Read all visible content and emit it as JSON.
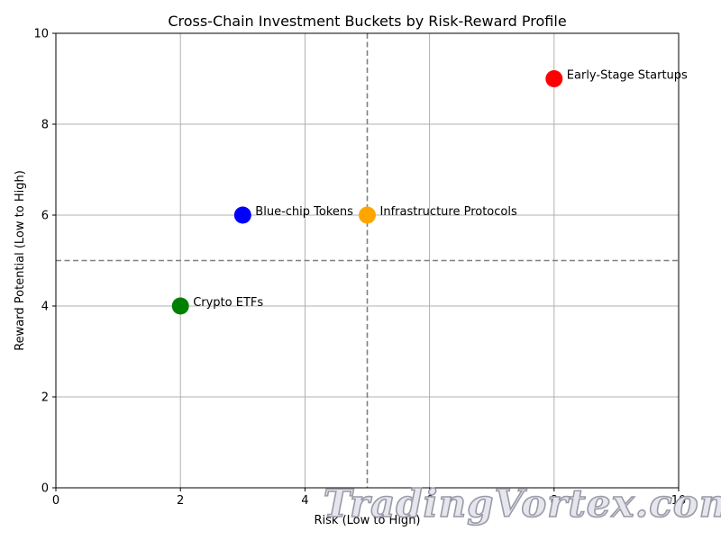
{
  "chart_data": {
    "type": "scatter",
    "title": "Cross-Chain Investment Buckets by Risk-Reward Profile",
    "xlabel": "Risk (Low to High)",
    "ylabel": "Reward Potential (Low to High)",
    "xlim": [
      0,
      10
    ],
    "ylim": [
      0,
      10
    ],
    "xticks": [
      0,
      2,
      4,
      6,
      8,
      10
    ],
    "yticks": [
      0,
      2,
      4,
      6,
      8,
      10
    ],
    "grid": true,
    "reference_lines": {
      "x": 5,
      "y": 5,
      "style": "dashed",
      "color": "#808080"
    },
    "points": [
      {
        "label": "Crypto ETFs",
        "x": 2,
        "y": 4,
        "color": "#008000"
      },
      {
        "label": "Blue-chip Tokens",
        "x": 3,
        "y": 6,
        "color": "#0000ff"
      },
      {
        "label": "Infrastructure Protocols",
        "x": 5,
        "y": 6,
        "color": "#ffa500"
      },
      {
        "label": "Early-Stage Startups",
        "x": 8,
        "y": 9,
        "color": "#ff0000"
      }
    ]
  },
  "watermark": "TradingVortex.com"
}
